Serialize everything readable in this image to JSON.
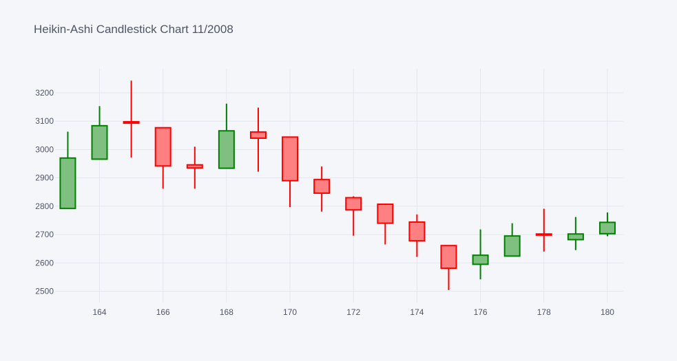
{
  "chart_data": {
    "type": "candlestick",
    "title": "Heikin-Ashi Candlestick Chart 11/2008",
    "xlabel": "",
    "ylabel": "",
    "xlim": [
      162.6,
      180.5
    ],
    "ylim": [
      2460,
      3285
    ],
    "x_ticks": [
      164,
      166,
      168,
      170,
      172,
      174,
      176,
      178,
      180
    ],
    "y_ticks": [
      2500,
      2600,
      2700,
      2800,
      2900,
      3000,
      3100,
      3200
    ],
    "grid": true,
    "legend": "none",
    "colors": {
      "increasing_line": "#008000",
      "increasing_fill": "#7fbf7f",
      "decreasing_line": "#ff0000",
      "decreasing_fill": "#ff8080",
      "grid": "#e3e6ee",
      "tick_label": "#4f5566",
      "background": "#f5f6fa"
    },
    "candles": [
      {
        "x": 163,
        "open": 2792,
        "high": 3063,
        "low": 2792,
        "close": 2970
      },
      {
        "x": 164,
        "open": 2966,
        "high": 3153,
        "low": 2966,
        "close": 3084
      },
      {
        "x": 165,
        "open": 3098,
        "high": 3243,
        "low": 2972,
        "close": 3093
      },
      {
        "x": 166,
        "open": 3077,
        "high": 3077,
        "low": 2862,
        "close": 2942
      },
      {
        "x": 167,
        "open": 2946,
        "high": 3010,
        "low": 2862,
        "close": 2935
      },
      {
        "x": 168,
        "open": 2934,
        "high": 3162,
        "low": 2934,
        "close": 3066
      },
      {
        "x": 169,
        "open": 3062,
        "high": 3148,
        "low": 2922,
        "close": 3040
      },
      {
        "x": 170,
        "open": 3044,
        "high": 3044,
        "low": 2797,
        "close": 2890
      },
      {
        "x": 171,
        "open": 2894,
        "high": 2940,
        "low": 2781,
        "close": 2846
      },
      {
        "x": 172,
        "open": 2830,
        "high": 2835,
        "low": 2696,
        "close": 2787
      },
      {
        "x": 173,
        "open": 2807,
        "high": 2807,
        "low": 2665,
        "close": 2740
      },
      {
        "x": 174,
        "open": 2744,
        "high": 2771,
        "low": 2621,
        "close": 2678
      },
      {
        "x": 175,
        "open": 2661,
        "high": 2661,
        "low": 2504,
        "close": 2581
      },
      {
        "x": 176,
        "open": 2595,
        "high": 2718,
        "low": 2542,
        "close": 2627
      },
      {
        "x": 177,
        "open": 2624,
        "high": 2740,
        "low": 2624,
        "close": 2695
      },
      {
        "x": 178,
        "open": 2702,
        "high": 2791,
        "low": 2640,
        "close": 2698
      },
      {
        "x": 179,
        "open": 2682,
        "high": 2762,
        "low": 2645,
        "close": 2702
      },
      {
        "x": 180,
        "open": 2703,
        "high": 2778,
        "low": 2694,
        "close": 2743
      }
    ]
  }
}
